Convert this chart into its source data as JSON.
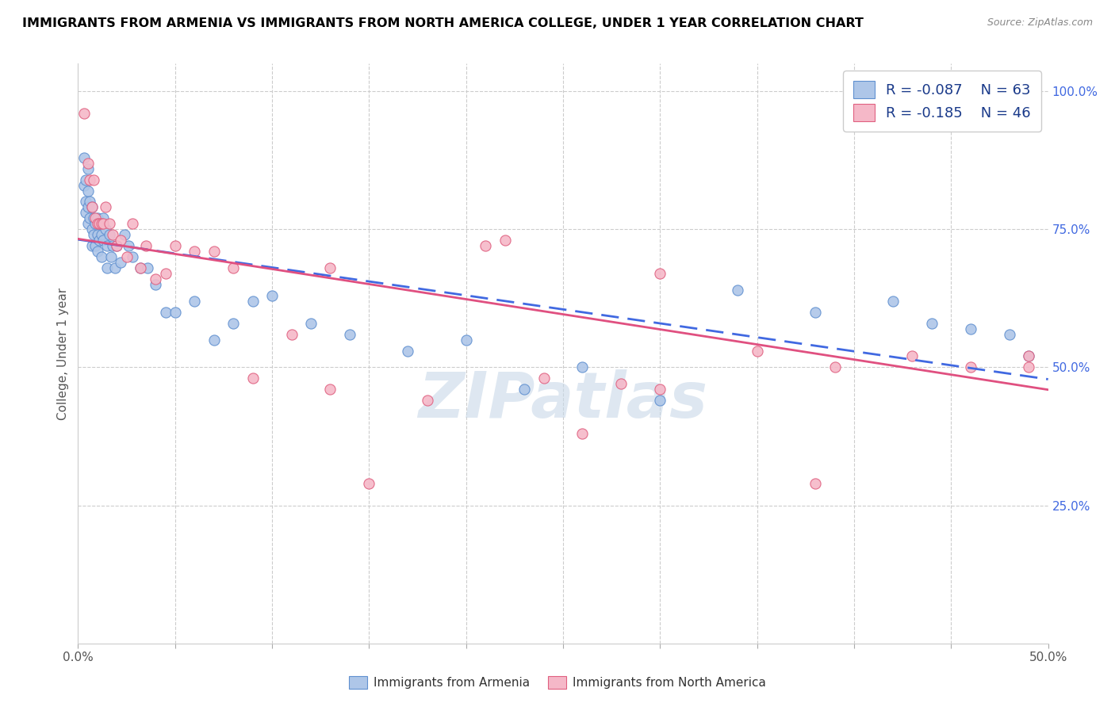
{
  "title": "IMMIGRANTS FROM ARMENIA VS IMMIGRANTS FROM NORTH AMERICA COLLEGE, UNDER 1 YEAR CORRELATION CHART",
  "source": "Source: ZipAtlas.com",
  "ylabel": "College, Under 1 year",
  "xlim": [
    0.0,
    0.5
  ],
  "ylim": [
    0.0,
    1.05
  ],
  "legend_r1": "-0.087",
  "legend_n1": "63",
  "legend_r2": "-0.185",
  "legend_n2": "46",
  "blue_color": "#aec6e8",
  "pink_color": "#f5b8c8",
  "blue_edge_color": "#6090d0",
  "pink_edge_color": "#e06080",
  "blue_line_color": "#4169e1",
  "pink_line_color": "#e05080",
  "watermark": "ZIPatlas",
  "blue_scatter_x": [
    0.003,
    0.004,
    0.004,
    0.005,
    0.005,
    0.005,
    0.006,
    0.006,
    0.007,
    0.007,
    0.007,
    0.008,
    0.008,
    0.009,
    0.009,
    0.01,
    0.01,
    0.01,
    0.011,
    0.011,
    0.012,
    0.012,
    0.013,
    0.013,
    0.014,
    0.015,
    0.015,
    0.016,
    0.017,
    0.018,
    0.019,
    0.02,
    0.022,
    0.024,
    0.026,
    0.028,
    0.032,
    0.036,
    0.04,
    0.045,
    0.05,
    0.06,
    0.07,
    0.08,
    0.09,
    0.1,
    0.12,
    0.14,
    0.17,
    0.2,
    0.23,
    0.26,
    0.3,
    0.34,
    0.38,
    0.42,
    0.44,
    0.46,
    0.48,
    0.49,
    0.003,
    0.004,
    0.005
  ],
  "blue_scatter_y": [
    0.83,
    0.8,
    0.78,
    0.82,
    0.79,
    0.76,
    0.8,
    0.77,
    0.79,
    0.75,
    0.72,
    0.77,
    0.74,
    0.76,
    0.72,
    0.77,
    0.74,
    0.71,
    0.76,
    0.73,
    0.74,
    0.7,
    0.77,
    0.73,
    0.75,
    0.72,
    0.68,
    0.74,
    0.7,
    0.72,
    0.68,
    0.72,
    0.69,
    0.74,
    0.72,
    0.7,
    0.68,
    0.68,
    0.65,
    0.6,
    0.6,
    0.62,
    0.55,
    0.58,
    0.62,
    0.63,
    0.58,
    0.56,
    0.53,
    0.55,
    0.46,
    0.5,
    0.44,
    0.64,
    0.6,
    0.62,
    0.58,
    0.57,
    0.56,
    0.52,
    0.88,
    0.84,
    0.86
  ],
  "pink_scatter_x": [
    0.003,
    0.005,
    0.006,
    0.007,
    0.008,
    0.009,
    0.01,
    0.011,
    0.012,
    0.013,
    0.014,
    0.016,
    0.018,
    0.02,
    0.022,
    0.025,
    0.028,
    0.032,
    0.035,
    0.04,
    0.045,
    0.05,
    0.06,
    0.07,
    0.08,
    0.09,
    0.11,
    0.13,
    0.15,
    0.18,
    0.21,
    0.24,
    0.28,
    0.3,
    0.35,
    0.39,
    0.43,
    0.46,
    0.47,
    0.49,
    0.49,
    0.38,
    0.26,
    0.3,
    0.22,
    0.13
  ],
  "pink_scatter_y": [
    0.96,
    0.87,
    0.84,
    0.79,
    0.84,
    0.77,
    0.76,
    0.76,
    0.76,
    0.76,
    0.79,
    0.76,
    0.74,
    0.72,
    0.73,
    0.7,
    0.76,
    0.68,
    0.72,
    0.66,
    0.67,
    0.72,
    0.71,
    0.71,
    0.68,
    0.48,
    0.56,
    0.46,
    0.29,
    0.44,
    0.72,
    0.48,
    0.47,
    0.67,
    0.53,
    0.5,
    0.52,
    0.5,
    1.0,
    0.52,
    0.5,
    0.29,
    0.38,
    0.46,
    0.73,
    0.68
  ]
}
